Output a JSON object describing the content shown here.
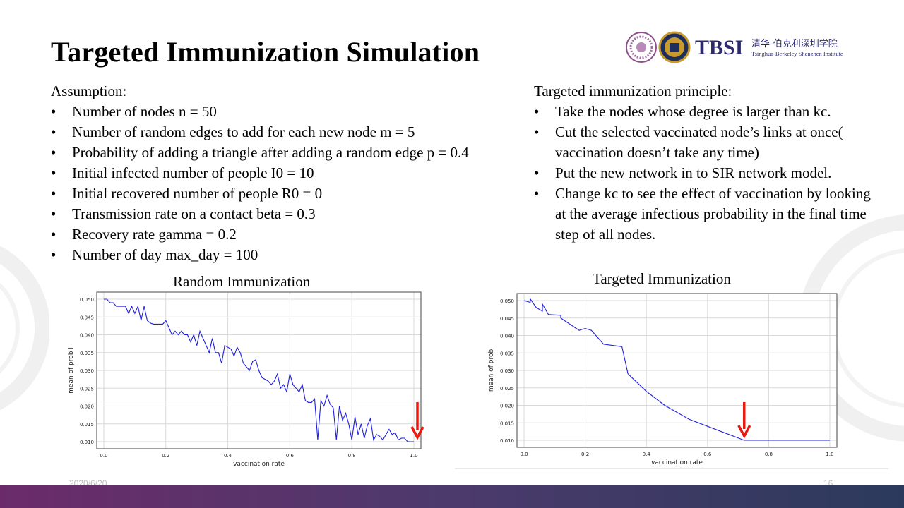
{
  "slide": {
    "title": "Targeted Immunization Simulation",
    "logo_text": "TBSI",
    "logo_cn": "清华-伯克利深圳学院",
    "logo_en": "Tsinghua-Berkeley Shenzhen Institute",
    "date": "2020/6/20",
    "page_number": "16"
  },
  "assumption": {
    "heading": "Assumption:",
    "items": [
      "Number of nodes  n = 50",
      "Number of random edges to add for each new node m = 5",
      "Probability of adding a triangle after adding a random edge  p = 0.4",
      "Initial infected number of people I0 = 10",
      " Initial recovered number of people R0 = 0",
      " Transmission  rate on a contact beta = 0.3",
      " Recovery rate gamma  = 0.2",
      "Number of day max_day = 100"
    ]
  },
  "principle": {
    "heading": "Targeted immunization  principle:",
    "items": [
      "Take the nodes whose degree is larger than kc.",
      "Cut the selected vaccinated node’s links at once( vaccination doesn’t take any time)",
      "Put the new  network in to SIR network model.",
      "Change kc to see the effect of vaccination by looking at the average infectious probability  in the final time step of all nodes."
    ]
  },
  "colors": {
    "line": "#1f1fdd",
    "arrow": "#e8190f",
    "grid": "#d9d9d9",
    "footer_bar_start": "#6b2b6a",
    "footer_bar_end": "#2b3a5c"
  },
  "chart_data": [
    {
      "type": "line",
      "title": "Random Immunization",
      "xlabel": "vaccination rate",
      "ylabel": "mean of prob i",
      "xlim": [
        0,
        1
      ],
      "ylim": [
        0.01,
        0.05
      ],
      "xticks": [
        "0.0",
        "0.2",
        "0.4",
        "0.6",
        "0.8",
        "1.0"
      ],
      "yticks": [
        "0.010",
        "0.015",
        "0.020",
        "0.025",
        "0.030",
        "0.035",
        "0.040",
        "0.045",
        "0.050"
      ],
      "grid": true,
      "annotation": "red arrow at x = 1.0",
      "series": [
        {
          "x": [
            0.0,
            0.01,
            0.02,
            0.03,
            0.04,
            0.05,
            0.06,
            0.07,
            0.08,
            0.09,
            0.1,
            0.11,
            0.12,
            0.13,
            0.14,
            0.15,
            0.16,
            0.17,
            0.18,
            0.19,
            0.2,
            0.21,
            0.22,
            0.23,
            0.24,
            0.25,
            0.26,
            0.27,
            0.28,
            0.29,
            0.3,
            0.31,
            0.32,
            0.33,
            0.34,
            0.35,
            0.36,
            0.37,
            0.38,
            0.39,
            0.4,
            0.41,
            0.42,
            0.43,
            0.44,
            0.45,
            0.46,
            0.47,
            0.48,
            0.49,
            0.5,
            0.51,
            0.52,
            0.53,
            0.54,
            0.55,
            0.56,
            0.57,
            0.58,
            0.59,
            0.6,
            0.61,
            0.62,
            0.63,
            0.64,
            0.65,
            0.66,
            0.67,
            0.68,
            0.69,
            0.7,
            0.71,
            0.72,
            0.73,
            0.74,
            0.75,
            0.76,
            0.77,
            0.78,
            0.79,
            0.8,
            0.81,
            0.82,
            0.83,
            0.84,
            0.85,
            0.86,
            0.87,
            0.88,
            0.89,
            0.9,
            0.91,
            0.92,
            0.93,
            0.94,
            0.95,
            0.96,
            0.97,
            0.98,
            0.99,
            1.0
          ],
          "y": [
            0.05,
            0.05,
            0.049,
            0.049,
            0.048,
            0.048,
            0.048,
            0.048,
            0.046,
            0.048,
            0.046,
            0.048,
            0.044,
            0.048,
            0.044,
            0.0433,
            0.043,
            0.043,
            0.043,
            0.043,
            0.044,
            0.042,
            0.04,
            0.041,
            0.04,
            0.041,
            0.04,
            0.04,
            0.038,
            0.04,
            0.037,
            0.041,
            0.039,
            0.037,
            0.035,
            0.039,
            0.035,
            0.035,
            0.032,
            0.037,
            0.0365,
            0.036,
            0.034,
            0.0365,
            0.035,
            0.032,
            0.031,
            0.03,
            0.0325,
            0.033,
            0.03,
            0.028,
            0.0275,
            0.027,
            0.026,
            0.027,
            0.029,
            0.025,
            0.026,
            0.024,
            0.029,
            0.026,
            0.025,
            0.024,
            0.026,
            0.0215,
            0.021,
            0.021,
            0.022,
            0.0105,
            0.0215,
            0.02,
            0.023,
            0.0205,
            0.0195,
            0.0105,
            0.02,
            0.016,
            0.018,
            0.015,
            0.0105,
            0.017,
            0.012,
            0.015,
            0.011,
            0.0145,
            0.0165,
            0.0105,
            0.012,
            0.0115,
            0.0105,
            0.012,
            0.0135,
            0.012,
            0.0125,
            0.0105,
            0.011,
            0.011,
            0.01,
            0.01,
            0.01
          ]
        }
      ]
    },
    {
      "type": "line",
      "title": "Targeted Immunization",
      "xlabel": "vaccination rate",
      "ylabel": "mean of prob",
      "xlim": [
        0,
        1
      ],
      "ylim": [
        0.01,
        0.05
      ],
      "xticks": [
        "0.0",
        "0.2",
        "0.4",
        "0.6",
        "0.8",
        "1.0"
      ],
      "yticks": [
        "0.010",
        "0.015",
        "0.020",
        "0.025",
        "0.030",
        "0.035",
        "0.040",
        "0.045",
        "0.050"
      ],
      "grid": true,
      "annotation": "red arrow at x = 0.72",
      "series": [
        {
          "x": [
            0.0,
            0.02,
            0.02,
            0.04,
            0.06,
            0.06,
            0.08,
            0.12,
            0.12,
            0.18,
            0.2,
            0.22,
            0.26,
            0.32,
            0.34,
            0.4,
            0.46,
            0.54,
            0.72,
            0.8,
            0.9,
            1.0
          ],
          "y": [
            0.05,
            0.0495,
            0.0505,
            0.048,
            0.047,
            0.049,
            0.046,
            0.0458,
            0.045,
            0.0415,
            0.042,
            0.0415,
            0.0375,
            0.0368,
            0.029,
            0.024,
            0.02,
            0.016,
            0.01,
            0.01,
            0.01,
            0.01
          ]
        }
      ]
    }
  ]
}
